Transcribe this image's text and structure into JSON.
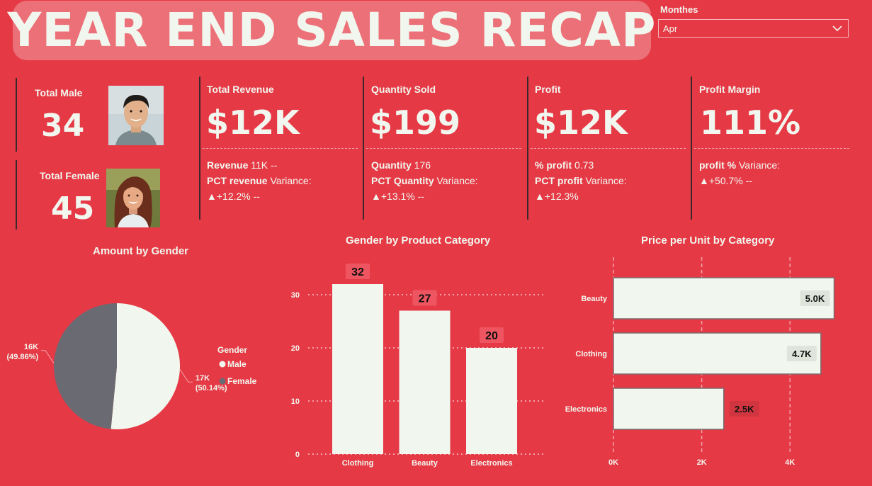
{
  "header": {
    "title": "YEAR END SALES RECAP"
  },
  "filter": {
    "label": "Monthes",
    "selected": "Apr"
  },
  "gender_cards": {
    "male": {
      "label": "Total Male",
      "value": "34"
    },
    "female": {
      "label": "Total Female",
      "value": "45"
    }
  },
  "kpis": [
    {
      "title": "Total Revenue",
      "value": "$12K",
      "line1_bold": "Revenue",
      "line1_rest": " 11K --",
      "line2_bold": "PCT revenue",
      "line2_rest": " Variance:",
      "line3": "▲+12.2% --"
    },
    {
      "title": "Quantity Sold",
      "value": "$199",
      "line1_bold": "Quantity",
      "line1_rest": " 176",
      "line2_bold": "PCT Quantity",
      "line2_rest": " Variance:",
      "line3": "▲+13.1% --"
    },
    {
      "title": "Profit",
      "value": "$12K",
      "line1_bold": "% profit",
      "line1_rest": " 0.73",
      "line2_bold": "PCT profit",
      "line2_rest": " Variance:",
      "line3": "▲+12.3%"
    },
    {
      "title": "Profit Margin",
      "value": "111%",
      "line1_bold": "profit %",
      "line1_rest": " Variance:",
      "line2_bold": "",
      "line2_rest": "▲+50.7% --",
      "line3": ""
    }
  ],
  "colors": {
    "background": "#e63946",
    "light": "#f1f7ee",
    "gray": "#6a6a72",
    "title_box": "#ec7078"
  },
  "chart_data": [
    {
      "type": "pie",
      "title": "Amount by Gender",
      "legend_title": "Gender",
      "legend_position": "right",
      "slices": [
        {
          "name": "Male",
          "value": 17,
          "label": "17K",
          "pct_label": "(50.14%)",
          "color": "#f1f7ee"
        },
        {
          "name": "Female",
          "value": 16,
          "label": "16K",
          "pct_label": "(49.86%)",
          "color": "#6a6a72"
        }
      ]
    },
    {
      "type": "bar",
      "title": "Gender by Product Category",
      "categories": [
        "Clothing",
        "Beauty",
        "Electronics"
      ],
      "values": [
        32,
        27,
        20
      ],
      "yticks": [
        0,
        10,
        20,
        30
      ],
      "ylim": [
        0,
        36
      ],
      "grid": true
    },
    {
      "type": "bar",
      "orientation": "horizontal",
      "title": "Price per Unit by Category",
      "categories": [
        "Beauty",
        "Clothing",
        "Electronics"
      ],
      "values": [
        5.0,
        4.7,
        2.5
      ],
      "value_labels": [
        "5.0K",
        "4.7K",
        "2.5K"
      ],
      "xticks": [
        "0K",
        "2K",
        "4K"
      ],
      "xtick_values": [
        0,
        2,
        4
      ],
      "xlim": [
        0,
        5.2
      ],
      "grid": true
    }
  ]
}
